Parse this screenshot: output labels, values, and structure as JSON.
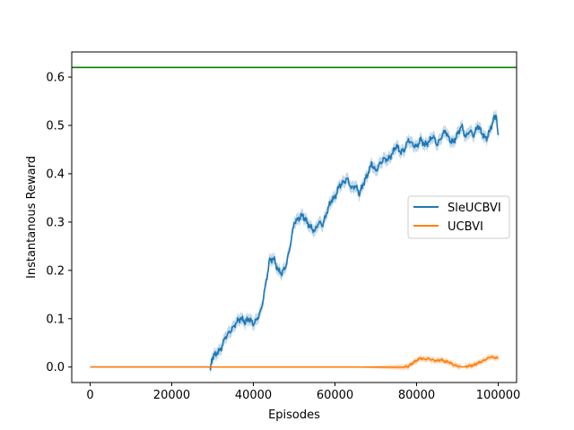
{
  "chart_data": {
    "type": "line",
    "title": "",
    "xlabel": "Episodes",
    "ylabel": "Instantanous Reward",
    "xlim": [
      -4500,
      104500
    ],
    "ylim": [
      -0.032,
      0.652
    ],
    "x_ticks": [
      0,
      20000,
      40000,
      60000,
      80000,
      100000
    ],
    "y_ticks": [
      0.0,
      0.1,
      0.2,
      0.3,
      0.4,
      0.5,
      0.6
    ],
    "grid": false,
    "legend_position": "center-right",
    "reference_line": {
      "y": 0.62,
      "color": "#008000"
    },
    "series": [
      {
        "name": "SleUCBVI",
        "color": "#1f77b4",
        "band_color": "#1f77b4",
        "points": [
          [
            0,
            0
          ],
          [
            29000,
            0
          ],
          [
            29500,
            0.0
          ],
          [
            30000,
            0.02
          ],
          [
            31000,
            0.03
          ],
          [
            32000,
            0.035
          ],
          [
            33000,
            0.06
          ],
          [
            34000,
            0.07
          ],
          [
            35000,
            0.08
          ],
          [
            36000,
            0.095
          ],
          [
            37000,
            0.1
          ],
          [
            38000,
            0.095
          ],
          [
            39000,
            0.1
          ],
          [
            40000,
            0.09
          ],
          [
            41000,
            0.1
          ],
          [
            42000,
            0.12
          ],
          [
            43000,
            0.17
          ],
          [
            44000,
            0.22
          ],
          [
            45000,
            0.225
          ],
          [
            46000,
            0.2
          ],
          [
            47000,
            0.195
          ],
          [
            48000,
            0.21
          ],
          [
            49000,
            0.25
          ],
          [
            50000,
            0.3
          ],
          [
            51000,
            0.305
          ],
          [
            52000,
            0.315
          ],
          [
            53000,
            0.3
          ],
          [
            54000,
            0.29
          ],
          [
            55000,
            0.28
          ],
          [
            56000,
            0.3
          ],
          [
            57000,
            0.295
          ],
          [
            58000,
            0.32
          ],
          [
            59000,
            0.345
          ],
          [
            60000,
            0.35
          ],
          [
            61000,
            0.375
          ],
          [
            62000,
            0.38
          ],
          [
            63000,
            0.39
          ],
          [
            64000,
            0.37
          ],
          [
            65000,
            0.375
          ],
          [
            66000,
            0.36
          ],
          [
            67000,
            0.38
          ],
          [
            68000,
            0.4
          ],
          [
            69000,
            0.42
          ],
          [
            70000,
            0.405
          ],
          [
            71000,
            0.42
          ],
          [
            72000,
            0.43
          ],
          [
            73000,
            0.43
          ],
          [
            74000,
            0.44
          ],
          [
            75000,
            0.46
          ],
          [
            76000,
            0.445
          ],
          [
            77000,
            0.45
          ],
          [
            78000,
            0.47
          ],
          [
            79000,
            0.46
          ],
          [
            80000,
            0.455
          ],
          [
            81000,
            0.47
          ],
          [
            82000,
            0.46
          ],
          [
            83000,
            0.465
          ],
          [
            84000,
            0.48
          ],
          [
            85000,
            0.46
          ],
          [
            86000,
            0.475
          ],
          [
            87000,
            0.49
          ],
          [
            88000,
            0.47
          ],
          [
            89000,
            0.465
          ],
          [
            90000,
            0.48
          ],
          [
            91000,
            0.5
          ],
          [
            92000,
            0.475
          ],
          [
            93000,
            0.49
          ],
          [
            94000,
            0.48
          ],
          [
            95000,
            0.5
          ],
          [
            96000,
            0.485
          ],
          [
            97000,
            0.47
          ],
          [
            98000,
            0.49
          ],
          [
            99000,
            0.515
          ],
          [
            99500,
            0.52
          ],
          [
            100000,
            0.48
          ]
        ]
      },
      {
        "name": "UCBVI",
        "color": "#ff7f0e",
        "band_color": "#ff7f0e",
        "points": [
          [
            0,
            0
          ],
          [
            77000,
            0
          ],
          [
            78000,
            0.002
          ],
          [
            79000,
            0.008
          ],
          [
            80000,
            0.014
          ],
          [
            81000,
            0.018
          ],
          [
            82000,
            0.016
          ],
          [
            83000,
            0.017
          ],
          [
            84000,
            0.014
          ],
          [
            85000,
            0.013
          ],
          [
            86000,
            0.015
          ],
          [
            87000,
            0.012
          ],
          [
            88000,
            0.01
          ],
          [
            89000,
            0.005
          ],
          [
            90000,
            0.002
          ],
          [
            91000,
            0.0
          ],
          [
            92000,
            0.001
          ],
          [
            93000,
            0.002
          ],
          [
            94000,
            0.004
          ],
          [
            95000,
            0.008
          ],
          [
            96000,
            0.012
          ],
          [
            97000,
            0.016
          ],
          [
            98000,
            0.021
          ],
          [
            99000,
            0.02
          ],
          [
            100000,
            0.018
          ]
        ]
      }
    ]
  }
}
